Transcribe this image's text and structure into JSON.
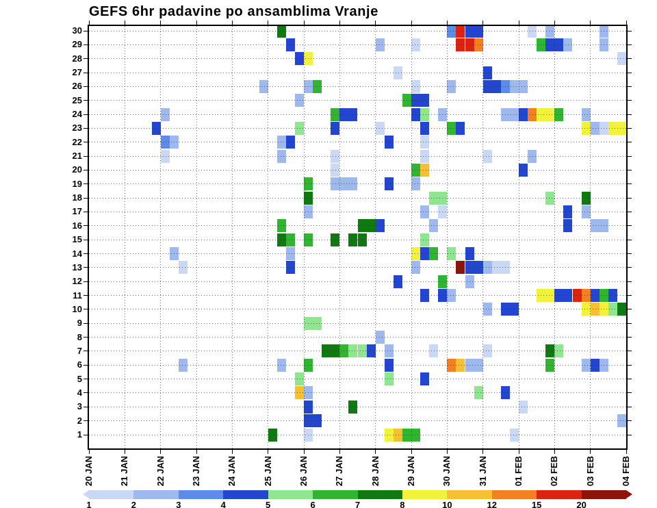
{
  "title": "GEFS 6hr padavine po ansamblima Vranje",
  "chart_data": {
    "type": "heatmap",
    "title": "GEFS 6hr padavine po ansamblima Vranje",
    "x_axis": {
      "tick_labels": [
        "20 JAN",
        "21 JAN",
        "22 JAN",
        "23 JAN",
        "24 JAN",
        "25 JAN",
        "26 JAN",
        "27 JAN",
        "28 JAN",
        "29 JAN",
        "30 JAN",
        "31 JAN",
        "01 FEB",
        "02 FEB",
        "03 FEB",
        "04 FEB"
      ],
      "steps_per_day": 4,
      "grid": "dotted"
    },
    "y_axis": {
      "tick_labels": [
        "30",
        "29",
        "28",
        "27",
        "26",
        "25",
        "24",
        "23",
        "22",
        "21",
        "20",
        "19",
        "18",
        "17",
        "16",
        "15",
        "14",
        "13",
        "12",
        "11",
        "10",
        "9",
        "8",
        "7",
        "6",
        "5",
        "4",
        "3",
        "2",
        "1"
      ],
      "grid": "dotted"
    },
    "colorbar": {
      "labels": [
        "1",
        "2",
        "3",
        "4",
        "5",
        "6",
        "7",
        "8",
        "10",
        "12",
        "15",
        "20"
      ],
      "colors": [
        "#c9d9f5",
        "#9db9f0",
        "#5d8bec",
        "#2246d2",
        "#8ee68e",
        "#2fb52f",
        "#0f7a0f",
        "#f2f23a",
        "#f8c030",
        "#f57f21",
        "#dc2310",
        "#8e1308"
      ]
    },
    "value_colors": {
      "1": "#c9d9f5",
      "2": "#9db9f0",
      "3": "#5d8bec",
      "4": "#2246d2",
      "5": "#8ee68e",
      "6": "#2fb52f",
      "7": "#0f7a0f",
      "8": "#f2f23a",
      "10": "#f8c030",
      "12": "#f57f21",
      "15": "#dc2310",
      "20": "#8e1308"
    },
    "cell_format": "[ensemble_member, six_hour_step_index_from_20JAN00, value_mm]",
    "cells": [
      [
        30,
        21,
        7
      ],
      [
        30,
        40,
        3
      ],
      [
        30,
        41,
        15
      ],
      [
        30,
        42,
        4
      ],
      [
        30,
        43,
        4
      ],
      [
        30,
        49,
        1
      ],
      [
        30,
        51,
        2
      ],
      [
        30,
        57,
        2
      ],
      [
        29,
        22,
        4
      ],
      [
        29,
        32,
        2
      ],
      [
        29,
        36,
        1
      ],
      [
        29,
        41,
        15
      ],
      [
        29,
        42,
        15
      ],
      [
        29,
        43,
        12
      ],
      [
        29,
        50,
        6
      ],
      [
        29,
        51,
        4
      ],
      [
        29,
        52,
        4
      ],
      [
        29,
        53,
        2
      ],
      [
        29,
        57,
        2
      ],
      [
        28,
        23,
        4
      ],
      [
        28,
        24,
        8
      ],
      [
        28,
        59,
        1
      ],
      [
        27,
        34,
        1
      ],
      [
        27,
        44,
        4
      ],
      [
        26,
        19,
        2
      ],
      [
        26,
        24,
        2
      ],
      [
        26,
        25,
        6
      ],
      [
        26,
        36,
        1
      ],
      [
        26,
        40,
        2
      ],
      [
        26,
        44,
        4
      ],
      [
        26,
        45,
        4
      ],
      [
        26,
        46,
        3
      ],
      [
        26,
        47,
        2
      ],
      [
        26,
        48,
        2
      ],
      [
        25,
        23,
        2
      ],
      [
        25,
        35,
        6
      ],
      [
        25,
        36,
        4
      ],
      [
        25,
        37,
        4
      ],
      [
        24,
        8,
        2
      ],
      [
        24,
        27,
        6
      ],
      [
        24,
        28,
        4
      ],
      [
        24,
        29,
        4
      ],
      [
        24,
        36,
        4
      ],
      [
        24,
        37,
        5
      ],
      [
        24,
        39,
        2
      ],
      [
        24,
        46,
        2
      ],
      [
        24,
        47,
        2
      ],
      [
        24,
        48,
        4
      ],
      [
        24,
        49,
        12
      ],
      [
        24,
        50,
        8
      ],
      [
        24,
        51,
        8
      ],
      [
        24,
        52,
        6
      ],
      [
        24,
        55,
        2
      ],
      [
        23,
        7,
        4
      ],
      [
        23,
        23,
        5
      ],
      [
        23,
        27,
        4
      ],
      [
        23,
        32,
        1
      ],
      [
        23,
        37,
        4
      ],
      [
        23,
        40,
        6
      ],
      [
        23,
        41,
        4
      ],
      [
        23,
        55,
        8
      ],
      [
        23,
        56,
        2
      ],
      [
        23,
        57,
        1
      ],
      [
        23,
        58,
        8
      ],
      [
        23,
        59,
        8
      ],
      [
        22,
        8,
        3
      ],
      [
        22,
        9,
        2
      ],
      [
        22,
        21,
        2
      ],
      [
        22,
        22,
        4
      ],
      [
        22,
        33,
        4
      ],
      [
        22,
        37,
        1
      ],
      [
        21,
        8,
        1
      ],
      [
        21,
        21,
        2
      ],
      [
        21,
        27,
        1
      ],
      [
        21,
        37,
        1
      ],
      [
        21,
        44,
        1
      ],
      [
        21,
        49,
        2
      ],
      [
        20,
        27,
        1
      ],
      [
        20,
        36,
        6
      ],
      [
        20,
        37,
        10
      ],
      [
        20,
        48,
        4
      ],
      [
        19,
        24,
        6
      ],
      [
        19,
        27,
        2
      ],
      [
        19,
        28,
        2
      ],
      [
        19,
        29,
        2
      ],
      [
        19,
        33,
        4
      ],
      [
        19,
        36,
        2
      ],
      [
        18,
        24,
        7
      ],
      [
        18,
        38,
        5
      ],
      [
        18,
        39,
        5
      ],
      [
        18,
        51,
        5
      ],
      [
        18,
        55,
        7
      ],
      [
        17,
        24,
        2
      ],
      [
        17,
        37,
        2
      ],
      [
        17,
        39,
        1
      ],
      [
        17,
        53,
        4
      ],
      [
        17,
        55,
        2
      ],
      [
        16,
        21,
        6
      ],
      [
        16,
        30,
        7
      ],
      [
        16,
        31,
        7
      ],
      [
        16,
        32,
        4
      ],
      [
        16,
        38,
        2
      ],
      [
        16,
        53,
        4
      ],
      [
        16,
        56,
        2
      ],
      [
        16,
        57,
        2
      ],
      [
        15,
        21,
        7
      ],
      [
        15,
        22,
        6
      ],
      [
        15,
        24,
        6
      ],
      [
        15,
        27,
        7
      ],
      [
        15,
        29,
        7
      ],
      [
        15,
        30,
        7
      ],
      [
        15,
        37,
        5
      ],
      [
        14,
        9,
        2
      ],
      [
        14,
        22,
        2
      ],
      [
        14,
        36,
        8
      ],
      [
        14,
        37,
        4
      ],
      [
        14,
        38,
        6
      ],
      [
        14,
        40,
        5
      ],
      [
        14,
        42,
        4
      ],
      [
        13,
        10,
        1
      ],
      [
        13,
        22,
        4
      ],
      [
        13,
        36,
        2
      ],
      [
        13,
        41,
        20
      ],
      [
        13,
        42,
        4
      ],
      [
        13,
        43,
        4
      ],
      [
        13,
        44,
        2
      ],
      [
        13,
        45,
        1
      ],
      [
        13,
        46,
        1
      ],
      [
        12,
        34,
        4
      ],
      [
        12,
        39,
        6
      ],
      [
        12,
        42,
        2
      ],
      [
        11,
        37,
        4
      ],
      [
        11,
        39,
        4
      ],
      [
        11,
        40,
        2
      ],
      [
        11,
        50,
        8
      ],
      [
        11,
        51,
        8
      ],
      [
        11,
        52,
        4
      ],
      [
        11,
        53,
        4
      ],
      [
        11,
        54,
        15
      ],
      [
        11,
        55,
        12
      ],
      [
        11,
        56,
        4
      ],
      [
        11,
        57,
        6
      ],
      [
        11,
        58,
        4
      ],
      [
        10,
        44,
        2
      ],
      [
        10,
        46,
        4
      ],
      [
        10,
        47,
        4
      ],
      [
        10,
        55,
        8
      ],
      [
        10,
        56,
        10
      ],
      [
        10,
        57,
        8
      ],
      [
        10,
        58,
        5
      ],
      [
        10,
        59,
        7
      ],
      [
        9,
        24,
        5
      ],
      [
        9,
        25,
        5
      ],
      [
        8,
        32,
        2
      ],
      [
        7,
        26,
        7
      ],
      [
        7,
        27,
        7
      ],
      [
        7,
        28,
        6
      ],
      [
        7,
        29,
        5
      ],
      [
        7,
        30,
        5
      ],
      [
        7,
        31,
        4
      ],
      [
        7,
        33,
        2
      ],
      [
        7,
        38,
        1
      ],
      [
        7,
        44,
        1
      ],
      [
        7,
        51,
        7
      ],
      [
        7,
        52,
        5
      ],
      [
        6,
        10,
        2
      ],
      [
        6,
        21,
        2
      ],
      [
        6,
        24,
        6
      ],
      [
        6,
        33,
        4
      ],
      [
        6,
        40,
        12
      ],
      [
        6,
        41,
        10
      ],
      [
        6,
        42,
        2
      ],
      [
        6,
        43,
        2
      ],
      [
        6,
        51,
        6
      ],
      [
        6,
        55,
        2
      ],
      [
        6,
        56,
        4
      ],
      [
        6,
        57,
        2
      ],
      [
        5,
        23,
        5
      ],
      [
        5,
        33,
        5
      ],
      [
        5,
        37,
        4
      ],
      [
        4,
        23,
        10
      ],
      [
        4,
        24,
        2
      ],
      [
        4,
        43,
        5
      ],
      [
        4,
        46,
        4
      ],
      [
        3,
        24,
        4
      ],
      [
        3,
        29,
        7
      ],
      [
        3,
        48,
        1
      ],
      [
        2,
        24,
        4
      ],
      [
        2,
        25,
        4
      ],
      [
        2,
        59,
        2
      ],
      [
        1,
        20,
        7
      ],
      [
        1,
        24,
        1
      ],
      [
        1,
        33,
        8
      ],
      [
        1,
        34,
        10
      ],
      [
        1,
        35,
        6
      ],
      [
        1,
        36,
        6
      ],
      [
        1,
        47,
        1
      ]
    ]
  }
}
